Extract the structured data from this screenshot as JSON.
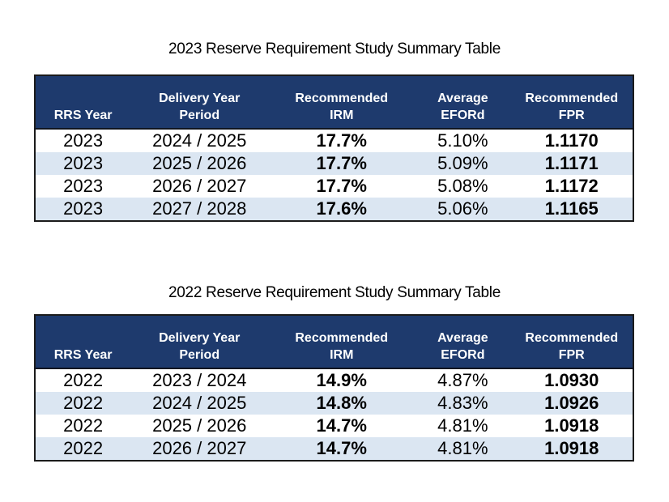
{
  "colors": {
    "header_bg": "#1e3a6d",
    "header_text": "#ffffff",
    "row_stripe": "#dbe6f2",
    "row_plain": "#ffffff",
    "border_dark": "#1b1b1b",
    "data_text": "#000000"
  },
  "tables": [
    {
      "title": "2023 Reserve Requirement Study Summary Table",
      "columns": [
        {
          "line1": "",
          "line2": "RRS Year"
        },
        {
          "line1": "Delivery Year",
          "line2": "Period"
        },
        {
          "line1": "Recommended",
          "line2": "IRM"
        },
        {
          "line1": "Average",
          "line2": "EFORd"
        },
        {
          "line1": "Recommended",
          "line2": "FPR"
        }
      ],
      "rows": [
        [
          "2023",
          "2024 / 2025",
          "17.7%",
          "5.10%",
          "1.1170"
        ],
        [
          "2023",
          "2025 / 2026",
          "17.7%",
          "5.09%",
          "1.1171"
        ],
        [
          "2023",
          "2026 / 2027",
          "17.7%",
          "5.08%",
          "1.1172"
        ],
        [
          "2023",
          "2027 / 2028",
          "17.6%",
          "5.06%",
          "1.1165"
        ]
      ]
    },
    {
      "title": "2022 Reserve Requirement Study Summary Table",
      "columns": [
        {
          "line1": "",
          "line2": "RRS Year"
        },
        {
          "line1": "Delivery Year",
          "line2": "Period"
        },
        {
          "line1": "Recommended",
          "line2": "IRM"
        },
        {
          "line1": "Average",
          "line2": "EFORd"
        },
        {
          "line1": "Recommended",
          "line2": "FPR"
        }
      ],
      "rows": [
        [
          "2022",
          "2023 / 2024",
          "14.9%",
          "4.87%",
          "1.0930"
        ],
        [
          "2022",
          "2024 / 2025",
          "14.8%",
          "4.83%",
          "1.0926"
        ],
        [
          "2022",
          "2025 / 2026",
          "14.7%",
          "4.81%",
          "1.0918"
        ],
        [
          "2022",
          "2026 / 2027",
          "14.7%",
          "4.81%",
          "1.0918"
        ]
      ]
    }
  ]
}
